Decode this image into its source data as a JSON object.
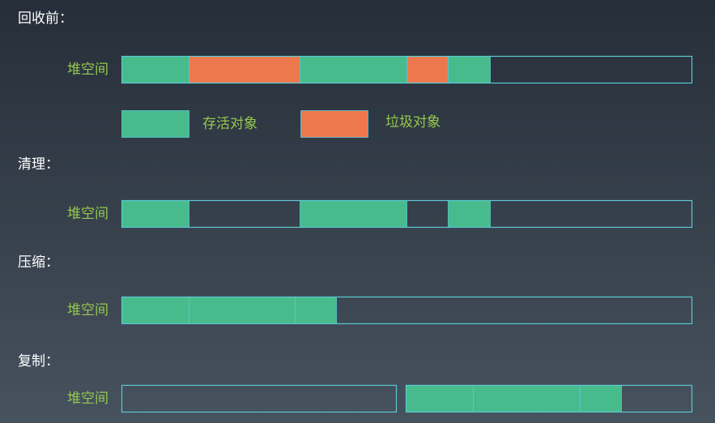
{
  "sections": [
    {
      "title": "回收前："
    },
    {
      "title": "清理："
    },
    {
      "title": "压缩："
    },
    {
      "title": "复制："
    }
  ],
  "heap_label": "堆空间",
  "legend": [
    {
      "label": "存活对象"
    },
    {
      "label": "垃圾对象"
    }
  ]
}
